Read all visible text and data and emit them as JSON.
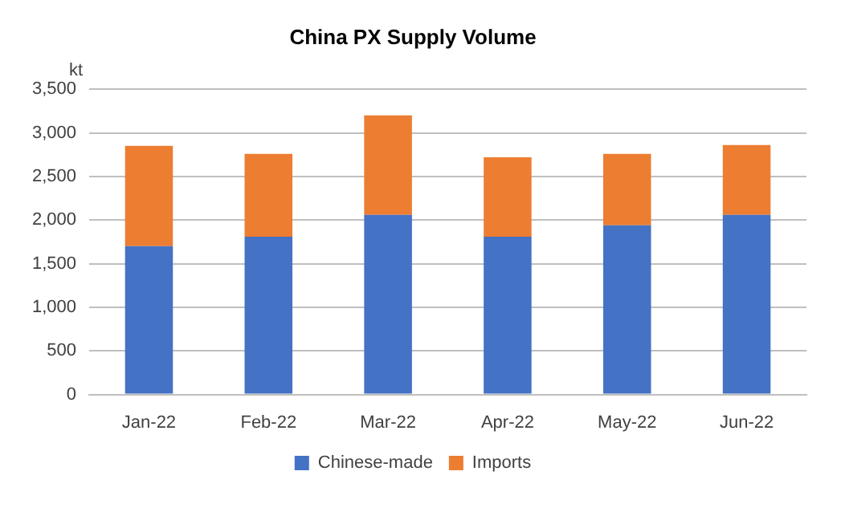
{
  "chart_data": {
    "type": "bar",
    "title": "China PX Supply Volume",
    "ylabel": "kt",
    "categories": [
      "Jan-22",
      "Feb-22",
      "Mar-22",
      "Apr-22",
      "May-22",
      "Jun-22"
    ],
    "stacked": true,
    "series": [
      {
        "name": "Chinese-made",
        "color": "#4472c4",
        "values": [
          1700,
          1810,
          2060,
          1810,
          1940,
          2060
        ]
      },
      {
        "name": "Imports",
        "color": "#ed7d31",
        "values": [
          1150,
          950,
          1140,
          910,
          820,
          800
        ]
      }
    ],
    "ylim": [
      0,
      3500
    ],
    "yticks": [
      0,
      500,
      {
        "value": 1000,
        "label": "1,000"
      },
      {
        "value": 1500,
        "label": "1,500"
      },
      {
        "value": 2000,
        "label": "2,000"
      },
      {
        "value": 2500,
        "label": "2,500"
      },
      {
        "value": 3000,
        "label": "3,000"
      },
      {
        "value": 3500,
        "label": "3,500"
      }
    ],
    "grid": "y",
    "legend": "bottom"
  }
}
